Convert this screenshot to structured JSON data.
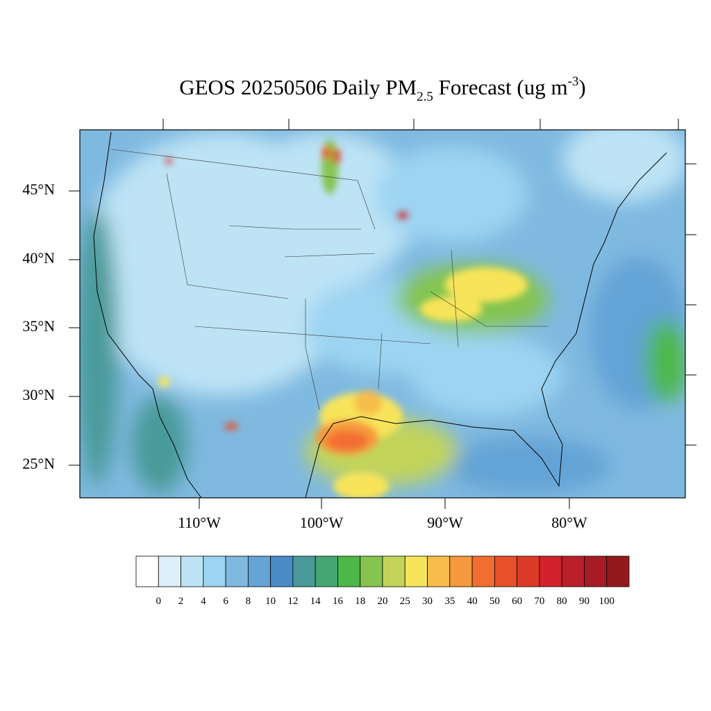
{
  "title": {
    "main": "GEOS 20250506 Daily PM",
    "subscript": "2.5",
    "middle": " Forecast (ug m",
    "superscript": "-3",
    "end": ")"
  },
  "map": {
    "lat_labels": [
      "45°N",
      "40°N",
      "35°N",
      "30°N",
      "25°N"
    ],
    "lon_labels": [
      "110°W",
      "100°W",
      "90°W",
      "80°W"
    ]
  },
  "colorbar": {
    "levels": [
      0,
      2,
      4,
      6,
      8,
      10,
      12,
      14,
      16,
      18,
      20,
      25,
      30,
      35,
      40,
      50,
      60,
      70,
      80,
      90,
      100
    ],
    "colors": [
      "#ffffff",
      "#ddf0fa",
      "#bde3f5",
      "#9dd4f2",
      "#7fb9e0",
      "#64a3d6",
      "#4a8bc8",
      "#4a9a9a",
      "#46a673",
      "#4db848",
      "#84c44f",
      "#c3d45a",
      "#f8e45a",
      "#f7bd4a",
      "#f59a3e",
      "#f26e30",
      "#e8502a",
      "#dc3a28",
      "#d2232c",
      "#bb1f2a",
      "#a71b24",
      "#921a1c"
    ]
  }
}
